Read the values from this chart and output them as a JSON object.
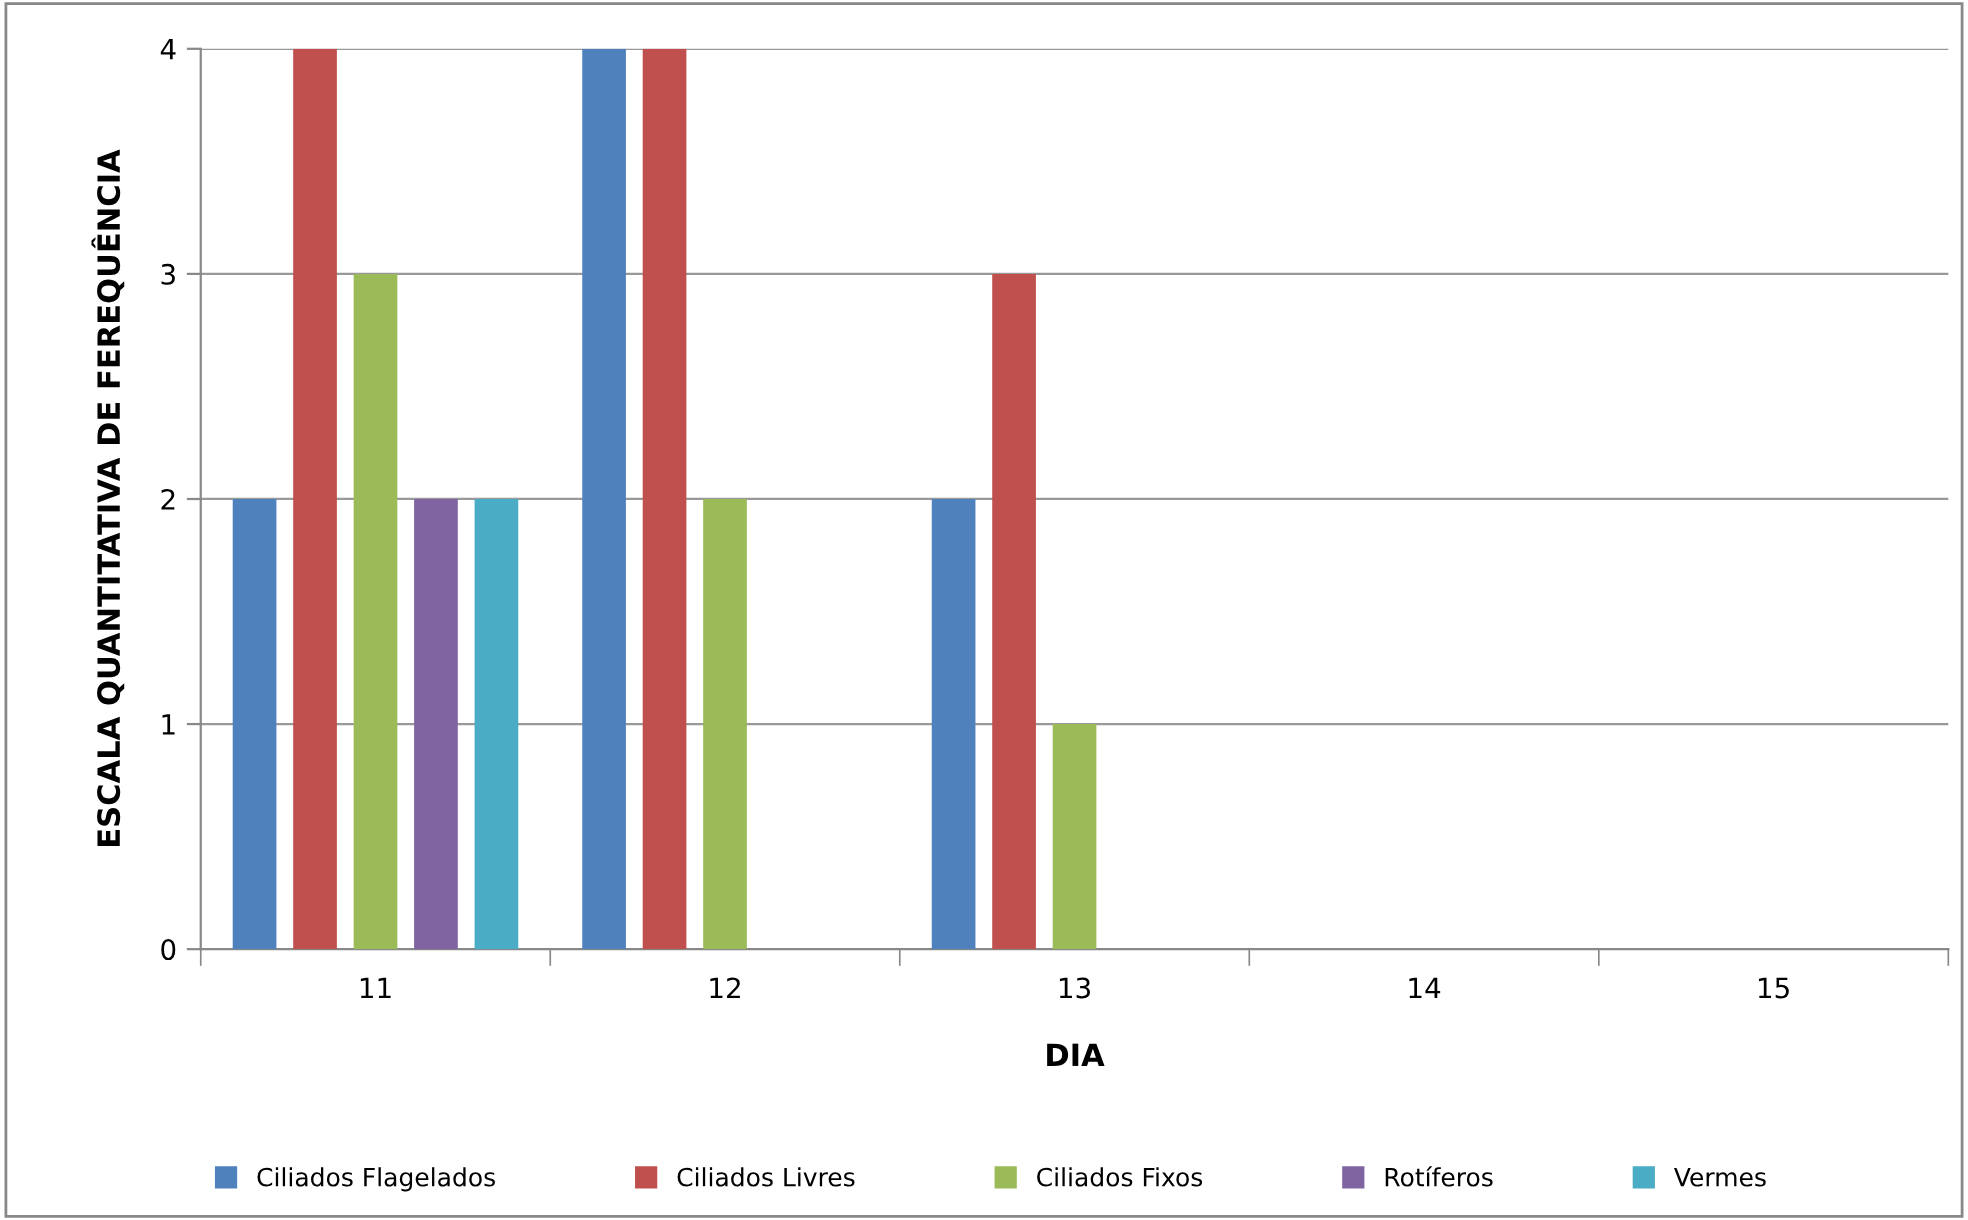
{
  "chart_data": {
    "type": "bar",
    "xlabel": "DIA",
    "ylabel": "ESCALA QUANTITATIVA DE FEREQUÊNCIA",
    "categories": [
      "11",
      "12",
      "13",
      "14",
      "15"
    ],
    "series": [
      {
        "name": "Ciliados Flagelados",
        "color": "#4f81bd",
        "values": [
          2,
          4,
          2,
          0,
          0
        ]
      },
      {
        "name": "Ciliados Livres",
        "color": "#c0504d",
        "values": [
          4,
          4,
          3,
          0,
          0
        ]
      },
      {
        "name": "Ciliados Fixos",
        "color": "#9bbb59",
        "values": [
          3,
          2,
          1,
          0,
          0
        ]
      },
      {
        "name": "Rotíferos",
        "color": "#8064a2",
        "values": [
          2,
          0,
          0,
          0,
          0
        ]
      },
      {
        "name": "Vermes",
        "color": "#4bacc6",
        "values": [
          2,
          0,
          0,
          0,
          0
        ]
      }
    ],
    "ylim": [
      0,
      4
    ],
    "yticks": [
      0,
      1,
      2,
      3,
      4
    ],
    "grid": "y",
    "legend": "bottom"
  }
}
